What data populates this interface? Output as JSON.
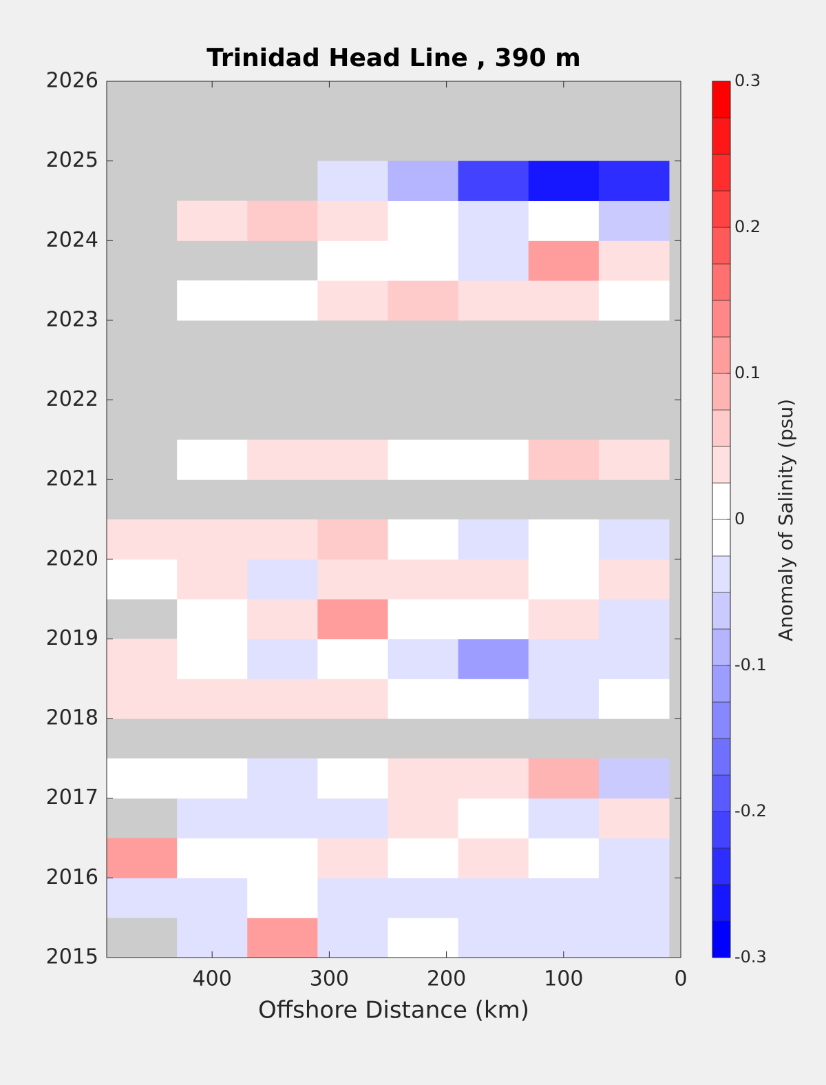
{
  "chart_data": {
    "type": "contour",
    "title": "Trinidad Head Line , 390 m",
    "xlabel": "Offshore Distance (km)",
    "colorbar_label": "Anomaly of Salinity (psu)",
    "x": [
      460,
      400,
      340,
      280,
      220,
      160,
      100,
      40
    ],
    "y": [
      2015.25,
      2015.75,
      2016.25,
      2016.75,
      2017.25,
      2017.75,
      2018.25,
      2018.75,
      2019.25,
      2019.75,
      2020.25,
      2020.75,
      2021.25,
      2021.75,
      2022.25,
      2022.75,
      2023.25,
      2023.75,
      2024.25,
      2024.75,
      2025.25
    ],
    "z": [
      [
        null,
        -0.03,
        0.1,
        -0.03,
        0.0,
        -0.03,
        -0.04,
        -0.04
      ],
      [
        -0.04,
        -0.05,
        0.0,
        -0.03,
        -0.03,
        -0.04,
        -0.04,
        -0.03
      ],
      [
        0.1,
        0.0,
        0.02,
        0.03,
        0.0,
        0.04,
        0.0,
        -0.04
      ],
      [
        null,
        -0.03,
        -0.05,
        -0.05,
        0.04,
        0.0,
        -0.04,
        0.03
      ],
      [
        0.0,
        0.0,
        -0.04,
        0.0,
        0.05,
        0.03,
        0.08,
        -0.06
      ],
      [
        null,
        null,
        null,
        null,
        null,
        null,
        null,
        null
      ],
      [
        0.03,
        0.05,
        0.03,
        0.03,
        0.0,
        -0.02,
        -0.03,
        0.0
      ],
      [
        0.04,
        0.0,
        -0.05,
        0.0,
        -0.03,
        -0.1,
        -0.04,
        -0.03
      ],
      [
        null,
        0.0,
        0.03,
        0.1,
        0.0,
        0.02,
        0.03,
        -0.03
      ],
      [
        0.0,
        0.03,
        -0.03,
        0.04,
        0.05,
        0.04,
        0.0,
        0.04
      ],
      [
        0.03,
        0.05,
        0.04,
        0.06,
        0.02,
        -0.03,
        -0.02,
        -0.04
      ],
      [
        null,
        null,
        null,
        null,
        null,
        null,
        null,
        null
      ],
      [
        null,
        0.02,
        0.04,
        0.03,
        0.02,
        0.0,
        0.06,
        0.03
      ],
      [
        null,
        null,
        null,
        null,
        null,
        null,
        null,
        null
      ],
      [
        null,
        null,
        null,
        null,
        null,
        null,
        null,
        null
      ],
      [
        null,
        null,
        null,
        null,
        null,
        null,
        null,
        null
      ],
      [
        null,
        0.0,
        0.02,
        0.04,
        0.06,
        0.04,
        0.04,
        0.02
      ],
      [
        null,
        null,
        null,
        0.02,
        -0.02,
        -0.03,
        0.12,
        0.03
      ],
      [
        null,
        0.03,
        0.06,
        0.04,
        0.0,
        -0.03,
        0.0,
        -0.06
      ],
      [
        null,
        null,
        null,
        -0.03,
        -0.08,
        -0.22,
        -0.25,
        -0.24
      ],
      [
        null,
        null,
        null,
        null,
        null,
        null,
        null,
        null
      ]
    ],
    "xlim": [
      490,
      0
    ],
    "xticks": [
      400,
      300,
      200,
      100,
      0
    ],
    "ylim": [
      2015,
      2026
    ],
    "yticks": [
      2015,
      2016,
      2017,
      2018,
      2019,
      2020,
      2021,
      2022,
      2023,
      2024,
      2025,
      2026
    ],
    "clim": [
      -0.3,
      0.3
    ],
    "cticks": [
      -0.3,
      -0.2,
      -0.1,
      0,
      0.1,
      0.2,
      0.3
    ],
    "contour_step": 0.025,
    "low_color": "#0000ff",
    "high_color": "#ff0000",
    "missing_color": "#cccccc"
  }
}
